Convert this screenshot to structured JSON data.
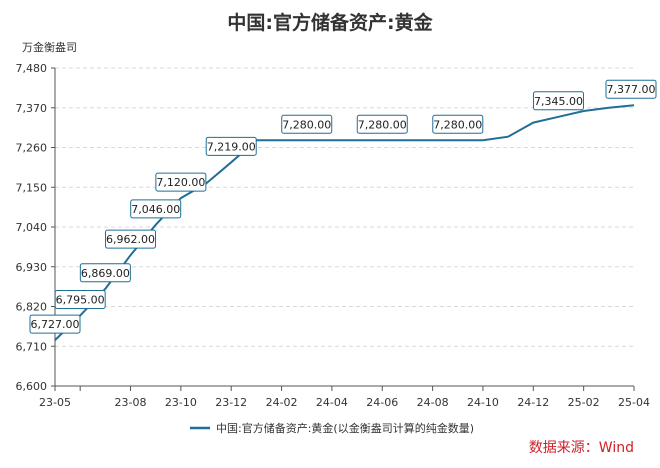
{
  "chart_data": {
    "type": "line",
    "title": "中国:官方储备资产:黄金",
    "ylabel": "万金衡盎司",
    "xlabel": "",
    "ylim": [
      6600,
      7480
    ],
    "yticks": [
      "7,480",
      "7,370",
      "7,260",
      "7,150",
      "7,040",
      "6,930",
      "6,820",
      "6,710",
      "6,600"
    ],
    "xticks": [
      "23-05",
      "23-08",
      "23-10",
      "23-12",
      "24-02",
      "24-04",
      "24-06",
      "24-08",
      "24-10",
      "24-12",
      "25-02",
      "25-04"
    ],
    "x": [
      "23-05",
      "23-06",
      "23-07",
      "23-08",
      "23-09",
      "23-10",
      "23-11",
      "23-12",
      "24-01",
      "24-02",
      "24-03",
      "24-04",
      "24-05",
      "24-06",
      "24-07",
      "24-08",
      "24-09",
      "24-10",
      "24-11",
      "24-12",
      "25-01",
      "25-02",
      "25-03",
      "25-04"
    ],
    "series": [
      {
        "name": "中国:官方储备资产:黄金(以金衡盎司计算的纯金数量)",
        "color": "#1f6f96",
        "values": [
          6727,
          6795,
          6869,
          6962,
          7046,
          7120,
          7160,
          7219,
          7280,
          7280,
          7280,
          7280,
          7280,
          7280,
          7280,
          7280,
          7280,
          7280,
          7290,
          7329,
          7345,
          7361,
          7370,
          7377
        ]
      }
    ],
    "data_labels": [
      {
        "x": "23-05",
        "text": "6,727.00"
      },
      {
        "x": "23-06",
        "text": "6,795.00"
      },
      {
        "x": "23-07",
        "text": "6,869.00"
      },
      {
        "x": "23-08",
        "text": "6,962.00"
      },
      {
        "x": "23-09",
        "text": "7,046.00"
      },
      {
        "x": "23-10",
        "text": "7,120.00"
      },
      {
        "x": "23-12",
        "text": "7,219.00"
      },
      {
        "x": "24-03",
        "text": "7,280.00"
      },
      {
        "x": "24-06",
        "text": "7,280.00"
      },
      {
        "x": "24-09",
        "text": "7,280.00"
      },
      {
        "x": "25-01",
        "text": "7,345.00"
      },
      {
        "x": "25-04",
        "text": "7,377.00"
      }
    ],
    "grid": true,
    "legend_position": "bottom"
  },
  "source_text": "数据来源：Wind"
}
